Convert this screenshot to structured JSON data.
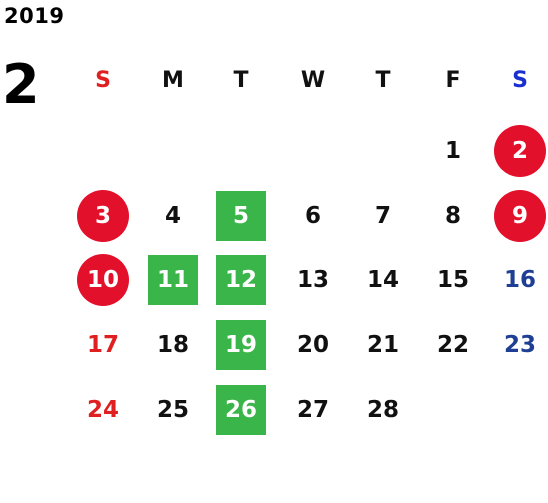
{
  "calendar": {
    "year": "2019",
    "month": "2",
    "weekdays": [
      {
        "label": "S",
        "color": "#e02020"
      },
      {
        "label": "M",
        "color": "#111111"
      },
      {
        "label": "T",
        "color": "#111111"
      },
      {
        "label": "W",
        "color": "#111111"
      },
      {
        "label": "T",
        "color": "#111111"
      },
      {
        "label": "F",
        "color": "#111111"
      },
      {
        "label": "S",
        "color": "#1a2fd0"
      }
    ],
    "first_weekday_index": 5,
    "days": [
      {
        "day": "1",
        "style": "normal"
      },
      {
        "day": "2",
        "style": "holiday-circle"
      },
      {
        "day": "3",
        "style": "holiday-circle"
      },
      {
        "day": "4",
        "style": "normal"
      },
      {
        "day": "5",
        "style": "highlight-green"
      },
      {
        "day": "6",
        "style": "normal"
      },
      {
        "day": "7",
        "style": "normal"
      },
      {
        "day": "8",
        "style": "normal"
      },
      {
        "day": "9",
        "style": "holiday-circle"
      },
      {
        "day": "10",
        "style": "holiday-circle"
      },
      {
        "day": "11",
        "style": "highlight-green"
      },
      {
        "day": "12",
        "style": "highlight-green"
      },
      {
        "day": "13",
        "style": "normal"
      },
      {
        "day": "14",
        "style": "normal"
      },
      {
        "day": "15",
        "style": "normal"
      },
      {
        "day": "16",
        "style": "saturday"
      },
      {
        "day": "17",
        "style": "sunday"
      },
      {
        "day": "18",
        "style": "normal"
      },
      {
        "day": "19",
        "style": "highlight-green"
      },
      {
        "day": "20",
        "style": "normal"
      },
      {
        "day": "21",
        "style": "normal"
      },
      {
        "day": "22",
        "style": "normal"
      },
      {
        "day": "23",
        "style": "saturday"
      },
      {
        "day": "24",
        "style": "sunday"
      },
      {
        "day": "25",
        "style": "normal"
      },
      {
        "day": "26",
        "style": "highlight-green"
      },
      {
        "day": "27",
        "style": "normal"
      },
      {
        "day": "28",
        "style": "normal"
      }
    ],
    "colors": {
      "holiday_circle": "#e2102b",
      "highlight_green": "#3ab54a",
      "sunday_text": "#e02020",
      "saturday_text": "#1f3f94"
    }
  }
}
